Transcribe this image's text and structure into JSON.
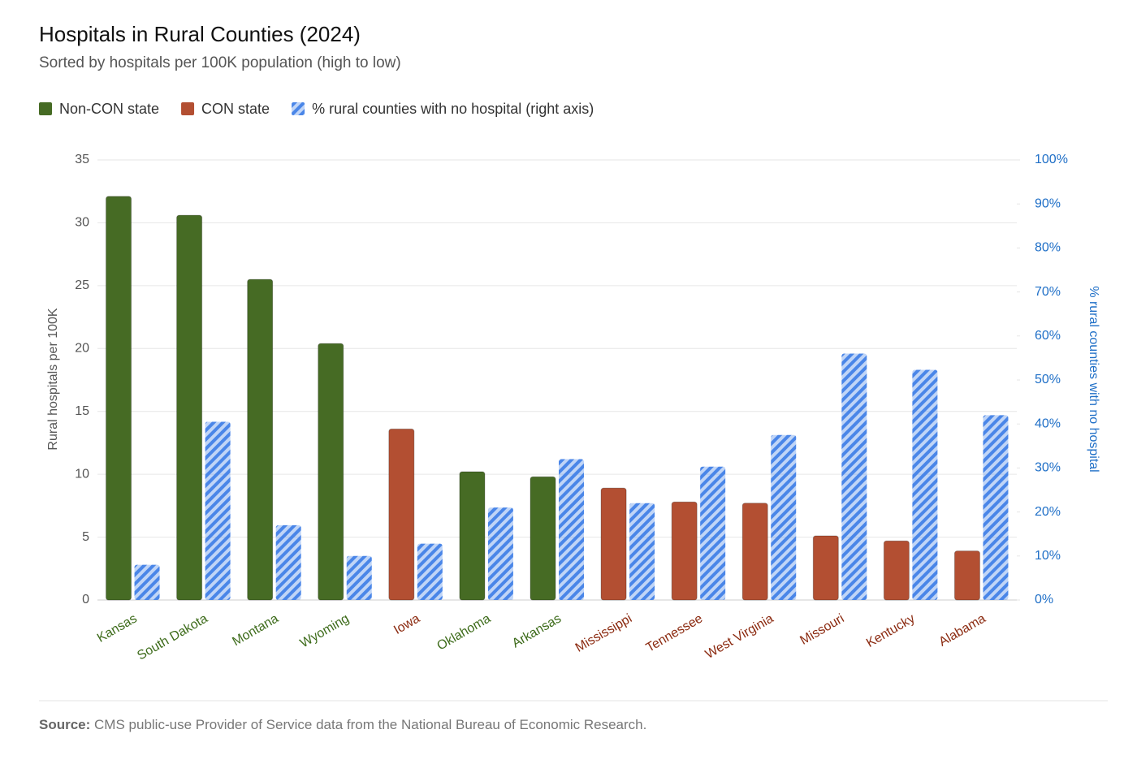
{
  "chart_data": {
    "type": "bar",
    "title": "Hospitals in Rural Counties (2024)",
    "subtitle": "Sorted by hospitals per 100K population (high to low)",
    "y_label": "Rural hospitals per 100K",
    "y2_label": "% rural counties with no hospital",
    "categories": [
      "Kansas",
      "South Dakota",
      "Montana",
      "Wyoming",
      "Iowa",
      "Oklahoma",
      "Arkansas",
      "Mississippi",
      "Tennessee",
      "West Virginia",
      "Missouri",
      "Kentucky",
      "Alabama"
    ],
    "series": [
      {
        "name": "Non-CON state",
        "color": "#466b24",
        "label_color": "#3d6b1a",
        "values": [
          32.1,
          30.6,
          25.5,
          20.4,
          null,
          10.2,
          9.8,
          null,
          null,
          null,
          null,
          null,
          null
        ]
      },
      {
        "name": "CON state",
        "color": "#b34f32",
        "label_color": "#8b2a10",
        "values": [
          null,
          null,
          null,
          null,
          13.6,
          null,
          null,
          8.9,
          7.8,
          7.7,
          5.1,
          4.7,
          3.9
        ]
      },
      {
        "name": "% rural counties with no hospital (right axis)",
        "color": "#4a86e8",
        "axis": "y2",
        "hatched": true,
        "values": [
          8,
          40.5,
          17,
          10,
          12.8,
          21,
          32,
          22,
          30.3,
          37.5,
          56,
          52.3,
          42
        ]
      }
    ],
    "ylim": [
      0,
      35
    ],
    "yticks": [
      0,
      5,
      10,
      15,
      20,
      25,
      30,
      35
    ],
    "y2lim": [
      0,
      100
    ],
    "y2ticks": [
      {
        "value": 0,
        "label": "0%"
      },
      {
        "value": 10,
        "label": "10%"
      },
      {
        "value": 20,
        "label": "20%"
      },
      {
        "value": 30,
        "label": "30%"
      },
      {
        "value": 40,
        "label": "40%"
      },
      {
        "value": 50,
        "label": "50%"
      },
      {
        "value": 60,
        "label": "60%"
      },
      {
        "value": 70,
        "label": "70%"
      },
      {
        "value": 80,
        "label": "80%"
      },
      {
        "value": 90,
        "label": "90%"
      },
      {
        "value": 100,
        "label": "100%"
      }
    ],
    "grid": true,
    "source_label": "Source:",
    "source_text": "CMS public-use Provider of Service data from the National Bureau of Economic Research."
  }
}
